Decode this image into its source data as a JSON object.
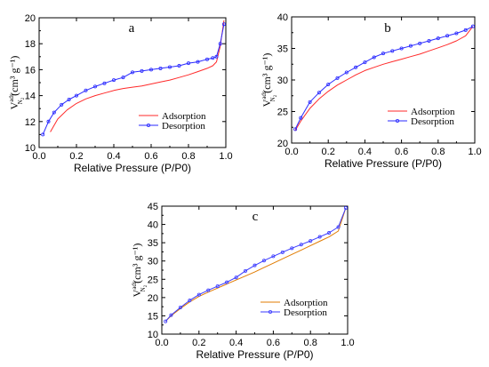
{
  "chart_data": [
    {
      "type": "line",
      "panel_letter": "a",
      "xlabel": "Relative Pressure (P/P0)",
      "ylabel": "V",
      "ylabel_sup": "ads",
      "ylabel_sub": "N",
      "ylabel_subsub": "2",
      "ylabel_unit": "(cm³ g⁻¹)",
      "xlim": [
        0.0,
        1.0
      ],
      "ylim": [
        10,
        20
      ],
      "xticks": [
        0.0,
        0.2,
        0.4,
        0.6,
        0.8,
        1.0
      ],
      "xtick_labels": [
        "0.0",
        "0.2",
        "0.4",
        "0.6",
        "0.8",
        "1.0"
      ],
      "yticks": [
        10,
        12,
        14,
        16,
        18,
        20
      ],
      "ytick_labels": [
        "10",
        "12",
        "14",
        "16",
        "18",
        "20"
      ],
      "legend_position": "bottom-right",
      "series": [
        {
          "name": "Adsorption",
          "color": "#ff2a2a",
          "marker": "none",
          "x": [
            0.06,
            0.1,
            0.15,
            0.2,
            0.25,
            0.3,
            0.35,
            0.4,
            0.45,
            0.5,
            0.55,
            0.6,
            0.65,
            0.7,
            0.75,
            0.8,
            0.85,
            0.9,
            0.93,
            0.95,
            0.97,
            0.99
          ],
          "y": [
            11.2,
            12.2,
            12.9,
            13.4,
            13.75,
            14.0,
            14.2,
            14.4,
            14.55,
            14.65,
            14.75,
            14.9,
            15.05,
            15.2,
            15.4,
            15.6,
            15.85,
            16.1,
            16.3,
            16.6,
            17.8,
            19.8
          ]
        },
        {
          "name": "Desorption",
          "color": "#2a2aff",
          "marker": "circle",
          "x": [
            0.02,
            0.05,
            0.08,
            0.12,
            0.16,
            0.2,
            0.25,
            0.3,
            0.35,
            0.4,
            0.45,
            0.5,
            0.55,
            0.6,
            0.65,
            0.7,
            0.75,
            0.8,
            0.85,
            0.9,
            0.93,
            0.95,
            0.97,
            0.99
          ],
          "y": [
            11.0,
            12.0,
            12.7,
            13.3,
            13.7,
            14.0,
            14.4,
            14.7,
            14.95,
            15.2,
            15.4,
            15.8,
            15.9,
            16.0,
            16.1,
            16.2,
            16.3,
            16.5,
            16.6,
            16.8,
            16.9,
            17.0,
            18.0,
            19.5
          ]
        }
      ]
    },
    {
      "type": "line",
      "panel_letter": "b",
      "xlabel": "Relative Pressure (P/P0)",
      "ylabel": "V",
      "ylabel_sup": "ads",
      "ylabel_sub": "N",
      "ylabel_subsub": "2",
      "ylabel_unit": "(cm³ g⁻¹)",
      "xlim": [
        0.0,
        1.0
      ],
      "ylim": [
        20,
        40
      ],
      "xticks": [
        0.0,
        0.2,
        0.4,
        0.6,
        0.8,
        1.0
      ],
      "xtick_labels": [
        "0.0",
        "0.2",
        "0.4",
        "0.6",
        "0.8",
        "1.0"
      ],
      "yticks": [
        20,
        25,
        30,
        35,
        40
      ],
      "ytick_labels": [
        "20",
        "25",
        "30",
        "35",
        "40"
      ],
      "legend_position": "bottom-right",
      "series": [
        {
          "name": "Adsorption",
          "color": "#ff2a2a",
          "marker": "none",
          "x": [
            0.02,
            0.05,
            0.1,
            0.15,
            0.2,
            0.25,
            0.3,
            0.35,
            0.4,
            0.45,
            0.5,
            0.55,
            0.6,
            0.65,
            0.7,
            0.75,
            0.8,
            0.85,
            0.9,
            0.95,
            0.99
          ],
          "y": [
            22.0,
            23.5,
            25.5,
            27.0,
            28.2,
            29.2,
            30.0,
            30.8,
            31.5,
            32.0,
            32.5,
            32.9,
            33.3,
            33.7,
            34.1,
            34.6,
            35.1,
            35.6,
            36.2,
            37.0,
            38.5
          ]
        },
        {
          "name": "Desorption",
          "color": "#2a2aff",
          "marker": "circle",
          "x": [
            0.02,
            0.05,
            0.1,
            0.15,
            0.2,
            0.25,
            0.3,
            0.35,
            0.4,
            0.45,
            0.5,
            0.55,
            0.6,
            0.65,
            0.7,
            0.75,
            0.8,
            0.85,
            0.9,
            0.95,
            0.99
          ],
          "y": [
            22.2,
            24.0,
            26.5,
            28.0,
            29.3,
            30.3,
            31.2,
            32.0,
            32.8,
            33.6,
            34.2,
            34.6,
            35.0,
            35.4,
            35.8,
            36.2,
            36.6,
            37.0,
            37.4,
            37.9,
            38.5
          ]
        }
      ]
    },
    {
      "type": "line",
      "panel_letter": "c",
      "xlabel": "Relative Pressure (P/P0)",
      "ylabel": "V",
      "ylabel_sup": "ads",
      "ylabel_sub": "N",
      "ylabel_subsub": "2",
      "ylabel_unit": "(cm³ g⁻¹)",
      "xlim": [
        0.0,
        1.0
      ],
      "ylim": [
        10,
        45
      ],
      "xticks": [
        0.0,
        0.2,
        0.4,
        0.6,
        0.8,
        1.0
      ],
      "xtick_labels": [
        "0.0",
        "0.2",
        "0.4",
        "0.6",
        "0.8",
        "1.0"
      ],
      "yticks": [
        10,
        15,
        20,
        25,
        30,
        35,
        40,
        45
      ],
      "ytick_labels": [
        "10",
        "15",
        "20",
        "25",
        "30",
        "35",
        "40",
        "45"
      ],
      "legend_position": "bottom-right",
      "series": [
        {
          "name": "Adsorption",
          "color": "#e07b00",
          "marker": "none",
          "x": [
            0.02,
            0.05,
            0.1,
            0.15,
            0.2,
            0.25,
            0.3,
            0.35,
            0.4,
            0.45,
            0.5,
            0.55,
            0.6,
            0.65,
            0.7,
            0.75,
            0.8,
            0.85,
            0.9,
            0.95,
            0.99
          ],
          "y": [
            13.5,
            15.0,
            17.0,
            18.8,
            20.3,
            21.5,
            22.6,
            23.7,
            24.8,
            25.9,
            27.0,
            28.2,
            29.4,
            30.6,
            31.8,
            33.0,
            34.2,
            35.4,
            36.6,
            38.2,
            44.5
          ]
        },
        {
          "name": "Desorption",
          "color": "#3a3aff",
          "marker": "circle",
          "x": [
            0.02,
            0.05,
            0.1,
            0.15,
            0.2,
            0.25,
            0.3,
            0.35,
            0.4,
            0.45,
            0.5,
            0.55,
            0.6,
            0.65,
            0.7,
            0.75,
            0.8,
            0.85,
            0.9,
            0.95,
            0.99
          ],
          "y": [
            13.5,
            15.2,
            17.3,
            19.2,
            20.8,
            22.0,
            23.1,
            24.2,
            25.5,
            27.3,
            28.8,
            30.1,
            31.3,
            32.4,
            33.5,
            34.5,
            35.5,
            36.6,
            37.7,
            39.3,
            44.5
          ]
        }
      ]
    }
  ]
}
